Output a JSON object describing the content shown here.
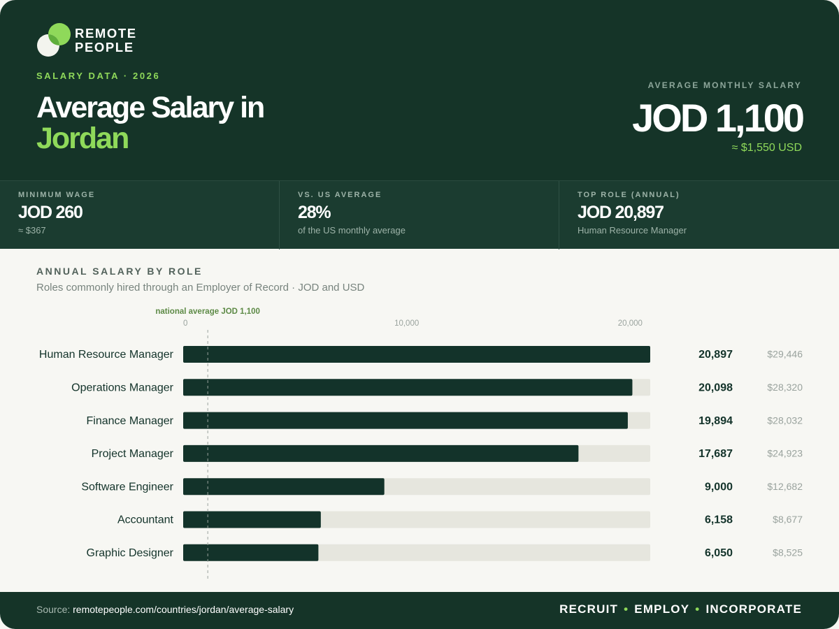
{
  "brand": {
    "name_line1": "REMOTE",
    "name_line2": "PEOPLE"
  },
  "header": {
    "eyebrow": "SALARY DATA · 2026",
    "title_line1": "Average Salary in",
    "title_line2": "Jordan",
    "avg_label": "AVERAGE MONTHLY SALARY",
    "avg_value": "JOD 1,100",
    "avg_usd": "≈ $1,550 USD"
  },
  "stats": [
    {
      "label": "MINIMUM WAGE",
      "value": "JOD 260",
      "sub": "≈ $367"
    },
    {
      "label": "VS. US AVERAGE",
      "value": "28%",
      "sub": "of the US monthly average"
    },
    {
      "label": "TOP ROLE (ANNUAL)",
      "value": "JOD 20,897",
      "sub": "Human Resource Manager"
    }
  ],
  "chart": {
    "title": "ANNUAL SALARY BY ROLE",
    "subtitle": "Roles commonly hired through an Employer of Record · JOD and USD"
  },
  "chart_data": {
    "type": "bar",
    "orientation": "horizontal",
    "categories": [
      "Human Resource Manager",
      "Operations Manager",
      "Finance Manager",
      "Project Manager",
      "Software Engineer",
      "Accountant",
      "Graphic Designer"
    ],
    "series": [
      {
        "values": [
          20897,
          20098,
          19894,
          17687,
          9000,
          6158,
          6050
        ]
      }
    ],
    "value_labels": [
      "20,897",
      "20,098",
      "19,894",
      "17,687",
      "9,000",
      "6,158",
      "6,050"
    ],
    "usd_labels": [
      "$29,446",
      "$28,320",
      "$28,032",
      "$24,923",
      "$12,682",
      "$8,677",
      "$8,525"
    ],
    "xlim": [
      0,
      20897
    ],
    "ticks": [
      0,
      10000,
      20000
    ],
    "tick_labels": [
      "0",
      "10,000",
      "20,000"
    ],
    "reference_line": {
      "value": 1100,
      "label": "national average JOD 1,100"
    },
    "grid": false,
    "colors": {
      "bar": "#13332a",
      "track": "#e6e6de"
    }
  },
  "footer": {
    "source_prefix": "Source:",
    "source_url": "remotepeople.com/countries/jordan/average-salary",
    "tag1": "RECRUIT",
    "tag2": "EMPLOY",
    "tag3": "INCORPORATE",
    "separator": "•"
  }
}
